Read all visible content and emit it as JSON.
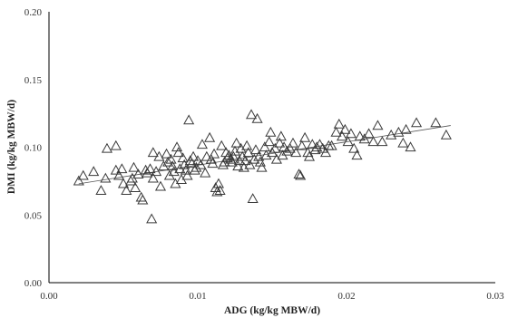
{
  "chart_data": {
    "type": "scatter",
    "title": "",
    "xlabel": "ADG (kg/kg MBW/d)",
    "ylabel": "DMI (kg/kg MBW/d)",
    "xlim": [
      0,
      0.03
    ],
    "ylim": [
      0,
      0.2
    ],
    "x_ticks": [
      "0.00",
      "0.01",
      "0.02",
      "0.03"
    ],
    "y_ticks": [
      "0.00",
      "0.05",
      "0.10",
      "0.15",
      "0.20"
    ],
    "grid": false,
    "legend": false,
    "marker": "open-triangle",
    "trendline": {
      "type": "linear",
      "points": [
        [
          0.002,
          0.073
        ],
        [
          0.027,
          0.116
        ]
      ]
    },
    "series": [
      {
        "points": [
          [
            0.002,
            0.075
          ],
          [
            0.0023,
            0.079
          ],
          [
            0.003,
            0.082
          ],
          [
            0.0035,
            0.068
          ],
          [
            0.0038,
            0.077
          ],
          [
            0.0039,
            0.099
          ],
          [
            0.0045,
            0.101
          ],
          [
            0.0045,
            0.083
          ],
          [
            0.0047,
            0.079
          ],
          [
            0.0049,
            0.084
          ],
          [
            0.005,
            0.073
          ],
          [
            0.0052,
            0.068
          ],
          [
            0.0055,
            0.075
          ],
          [
            0.0056,
            0.077
          ],
          [
            0.0057,
            0.085
          ],
          [
            0.0058,
            0.07
          ],
          [
            0.006,
            0.08
          ],
          [
            0.0062,
            0.063
          ],
          [
            0.0063,
            0.061
          ],
          [
            0.0065,
            0.083
          ],
          [
            0.0066,
            0.081
          ],
          [
            0.0068,
            0.084
          ],
          [
            0.0069,
            0.047
          ],
          [
            0.007,
            0.077
          ],
          [
            0.007,
            0.096
          ],
          [
            0.0072,
            0.082
          ],
          [
            0.0074,
            0.093
          ],
          [
            0.0075,
            0.071
          ],
          [
            0.0077,
            0.086
          ],
          [
            0.0079,
            0.095
          ],
          [
            0.008,
            0.089
          ],
          [
            0.0081,
            0.079
          ],
          [
            0.0082,
            0.091
          ],
          [
            0.0083,
            0.086
          ],
          [
            0.0084,
            0.082
          ],
          [
            0.0085,
            0.073
          ],
          [
            0.0086,
            0.1
          ],
          [
            0.0087,
            0.096
          ],
          [
            0.0088,
            0.084
          ],
          [
            0.0089,
            0.076
          ],
          [
            0.009,
            0.092
          ],
          [
            0.0091,
            0.087
          ],
          [
            0.0092,
            0.083
          ],
          [
            0.0093,
            0.079
          ],
          [
            0.0094,
            0.12
          ],
          [
            0.0095,
            0.09
          ],
          [
            0.0096,
            0.088
          ],
          [
            0.0097,
            0.093
          ],
          [
            0.0098,
            0.083
          ],
          [
            0.0099,
            0.085
          ],
          [
            0.01,
            0.09
          ],
          [
            0.0102,
            0.087
          ],
          [
            0.0103,
            0.102
          ],
          [
            0.0105,
            0.081
          ],
          [
            0.0106,
            0.093
          ],
          [
            0.0108,
            0.107
          ],
          [
            0.0109,
            0.091
          ],
          [
            0.011,
            0.088
          ],
          [
            0.0111,
            0.095
          ],
          [
            0.0112,
            0.07
          ],
          [
            0.0113,
            0.067
          ],
          [
            0.0114,
            0.073
          ],
          [
            0.0115,
            0.068
          ],
          [
            0.0116,
            0.101
          ],
          [
            0.0117,
            0.087
          ],
          [
            0.0118,
            0.089
          ],
          [
            0.0119,
            0.096
          ],
          [
            0.012,
            0.092
          ],
          [
            0.0121,
            0.094
          ],
          [
            0.0122,
            0.091
          ],
          [
            0.0123,
            0.089
          ],
          [
            0.0124,
            0.093
          ],
          [
            0.0125,
            0.097
          ],
          [
            0.0126,
            0.103
          ],
          [
            0.0127,
            0.086
          ],
          [
            0.0128,
            0.09
          ],
          [
            0.0129,
            0.099
          ],
          [
            0.013,
            0.093
          ],
          [
            0.0131,
            0.085
          ],
          [
            0.0132,
            0.09
          ],
          [
            0.0133,
            0.101
          ],
          [
            0.0134,
            0.096
          ],
          [
            0.0135,
            0.087
          ],
          [
            0.0136,
            0.124
          ],
          [
            0.0137,
            0.062
          ],
          [
            0.0138,
            0.091
          ],
          [
            0.0139,
            0.098
          ],
          [
            0.014,
            0.121
          ],
          [
            0.0141,
            0.093
          ],
          [
            0.0142,
            0.089
          ],
          [
            0.0143,
            0.085
          ],
          [
            0.0145,
            0.1
          ],
          [
            0.0146,
            0.094
          ],
          [
            0.0148,
            0.104
          ],
          [
            0.0149,
            0.111
          ],
          [
            0.015,
            0.096
          ],
          [
            0.0152,
            0.099
          ],
          [
            0.0153,
            0.091
          ],
          [
            0.0155,
            0.103
          ],
          [
            0.0156,
            0.108
          ],
          [
            0.0157,
            0.094
          ],
          [
            0.0158,
            0.1
          ],
          [
            0.016,
            0.097
          ],
          [
            0.0162,
            0.099
          ],
          [
            0.0164,
            0.103
          ],
          [
            0.0166,
            0.096
          ],
          [
            0.0168,
            0.08
          ],
          [
            0.0169,
            0.079
          ],
          [
            0.017,
            0.101
          ],
          [
            0.0172,
            0.107
          ],
          [
            0.0174,
            0.096
          ],
          [
            0.0175,
            0.093
          ],
          [
            0.0177,
            0.102
          ],
          [
            0.0179,
            0.098
          ],
          [
            0.018,
            0.1
          ],
          [
            0.0182,
            0.102
          ],
          [
            0.0184,
            0.099
          ],
          [
            0.0186,
            0.096
          ],
          [
            0.0188,
            0.101
          ],
          [
            0.019,
            0.101
          ],
          [
            0.0193,
            0.111
          ],
          [
            0.0195,
            0.117
          ],
          [
            0.0197,
            0.108
          ],
          [
            0.0199,
            0.113
          ],
          [
            0.0201,
            0.104
          ],
          [
            0.0203,
            0.11
          ],
          [
            0.0205,
            0.099
          ],
          [
            0.0207,
            0.094
          ],
          [
            0.0209,
            0.108
          ],
          [
            0.0212,
            0.106
          ],
          [
            0.0215,
            0.11
          ],
          [
            0.0218,
            0.104
          ],
          [
            0.0221,
            0.116
          ],
          [
            0.0224,
            0.104
          ],
          [
            0.023,
            0.109
          ],
          [
            0.0235,
            0.111
          ],
          [
            0.0238,
            0.103
          ],
          [
            0.024,
            0.113
          ],
          [
            0.0243,
            0.1
          ],
          [
            0.0247,
            0.118
          ],
          [
            0.026,
            0.118
          ],
          [
            0.0267,
            0.109
          ]
        ]
      }
    ]
  }
}
